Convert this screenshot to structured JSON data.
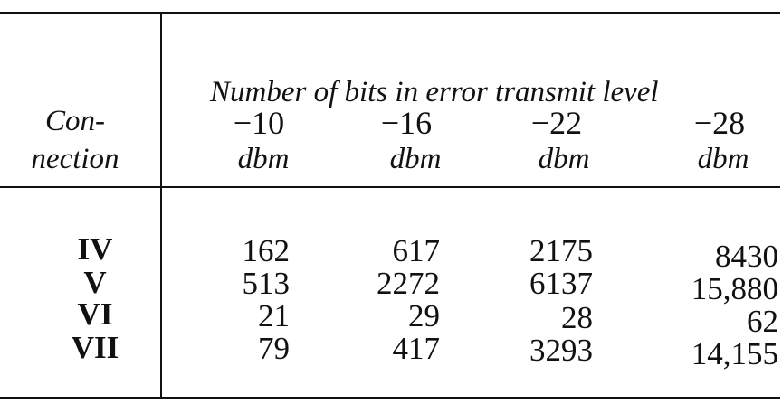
{
  "table": {
    "caption": "Number of bits in error transmit level",
    "stub_header": {
      "line1": "Con-",
      "line2": "nection"
    },
    "columns": [
      {
        "level": "−10",
        "unit": "dbm"
      },
      {
        "level": "−16",
        "unit": "dbm"
      },
      {
        "level": "−22",
        "unit": "dbm"
      },
      {
        "level": "−28",
        "unit": "dbm"
      }
    ],
    "rows": [
      {
        "label": "IV",
        "values": [
          "162",
          "617",
          "2175",
          "8430"
        ]
      },
      {
        "label": "V",
        "values": [
          "513",
          "2272",
          "6137",
          "15,880"
        ]
      },
      {
        "label": "VI",
        "values": [
          "21",
          "29",
          "28",
          "62"
        ]
      },
      {
        "label": "VII",
        "values": [
          "79",
          "417",
          "3293",
          "14,155"
        ]
      }
    ]
  }
}
